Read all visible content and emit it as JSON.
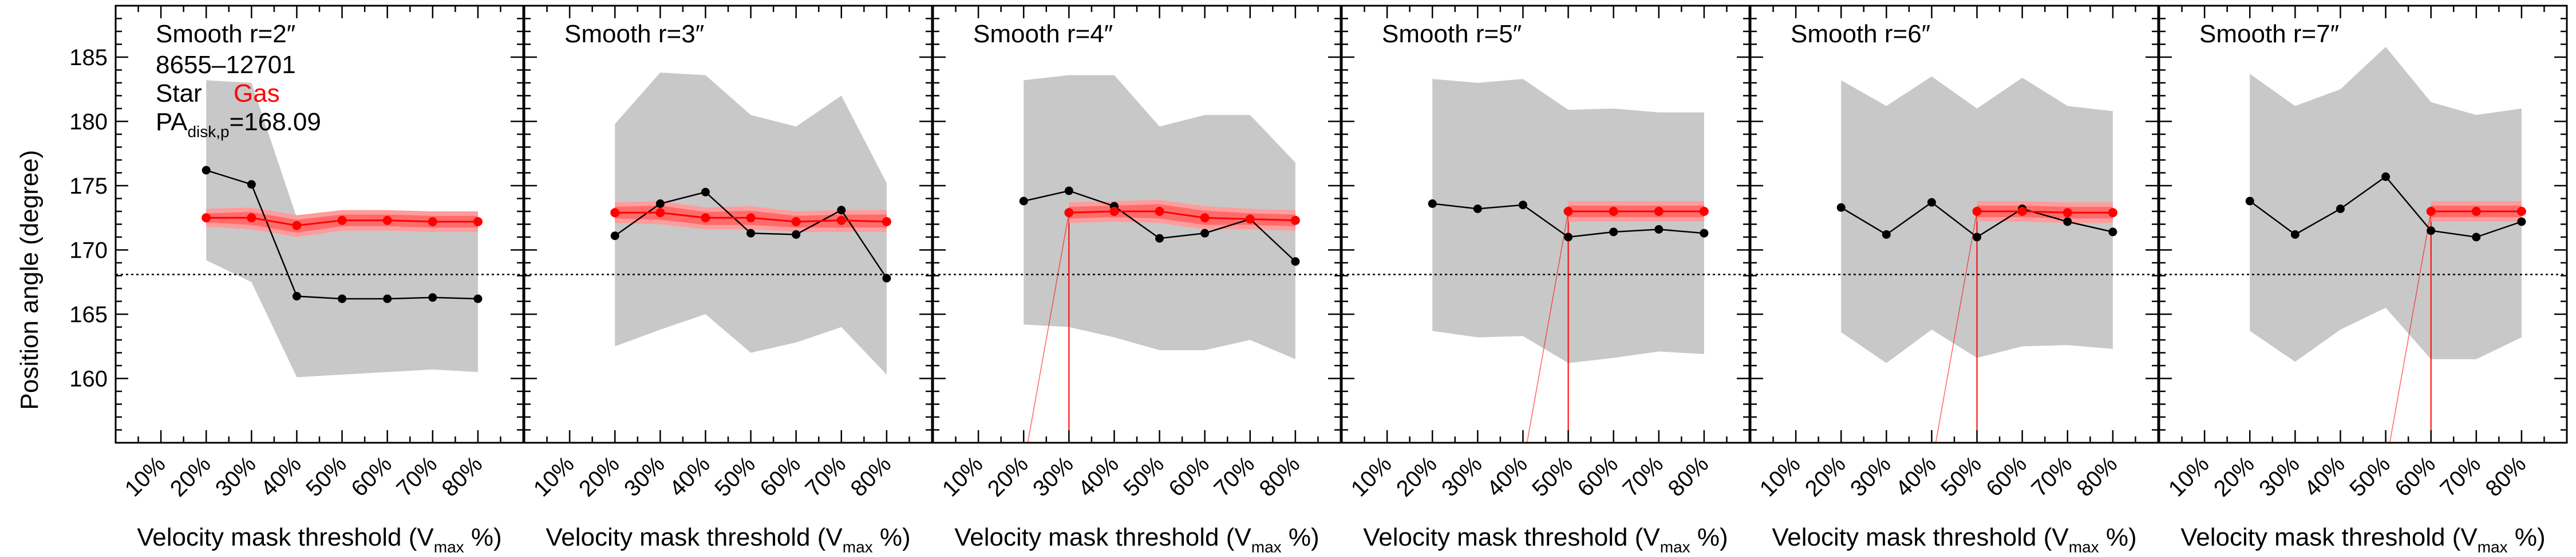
{
  "figure": {
    "ylabel": "Position angle (degree)",
    "xlabel_main": "Velocity mask threshold (V",
    "xlabel_sub": "max",
    "xlabel_end": " %)",
    "galaxy_id": "8655–12701",
    "legend_star": "Star",
    "legend_gas": "Gas",
    "pa_prefix": "PA",
    "pa_sub": "disk,p",
    "pa_value": "=168.09"
  },
  "colors": {
    "star": "#000000",
    "gas": "#ff0000",
    "gas_band": "#ff9c9c",
    "gas_band_inner": "#ff6b6b",
    "star_band": "#c8c8c8",
    "ref_line": "#000000"
  },
  "chart_data": [
    {
      "type": "line",
      "title": "Smooth r=2″",
      "x_tick_labels": [
        "10%",
        "20%",
        "30%",
        "40%",
        "50%",
        "60%",
        "70%",
        "80%"
      ],
      "x": [
        10,
        20,
        30,
        40,
        50,
        60,
        70,
        80
      ],
      "xlim": [
        0,
        90
      ],
      "ylim": [
        155,
        189
      ],
      "y_ticks": [
        160,
        165,
        170,
        175,
        180,
        185
      ],
      "reference_pa": 168.09,
      "star_x": [
        20,
        30,
        40,
        50,
        60,
        70,
        80
      ],
      "star_pa": [
        176.2,
        175.1,
        166.4,
        166.2,
        166.2,
        166.3,
        166.2
      ],
      "star_band_lower": [
        169.2,
        167.5,
        160.1,
        160.3,
        160.5,
        160.7,
        160.5
      ],
      "star_band_upper": [
        183.2,
        183.0,
        172.5,
        172.2,
        172.0,
        172.0,
        172.0
      ],
      "gas_x": [
        20,
        30,
        40,
        50,
        60,
        70,
        80
      ],
      "gas_pa": [
        172.5,
        172.5,
        171.9,
        172.3,
        172.3,
        172.2,
        172.2
      ],
      "gas_band_lower": [
        171.8,
        171.6,
        171.0,
        171.5,
        171.5,
        171.4,
        171.4
      ],
      "gas_band_upper": [
        173.2,
        173.3,
        172.7,
        173.1,
        173.1,
        173.0,
        173.0
      ],
      "gas_start_drop": null
    },
    {
      "type": "line",
      "title": "Smooth r=3″",
      "x_tick_labels": [
        "10%",
        "20%",
        "30%",
        "40%",
        "50%",
        "60%",
        "70%",
        "80%"
      ],
      "x": [
        10,
        20,
        30,
        40,
        50,
        60,
        70,
        80
      ],
      "xlim": [
        0,
        90
      ],
      "ylim": [
        155,
        189
      ],
      "y_ticks": [
        160,
        165,
        170,
        175,
        180,
        185
      ],
      "reference_pa": 168.09,
      "star_x": [
        20,
        30,
        40,
        50,
        60,
        70,
        80
      ],
      "star_pa": [
        171.1,
        173.6,
        174.5,
        171.3,
        171.2,
        173.1,
        167.8
      ],
      "star_band_lower": [
        162.5,
        163.8,
        165.0,
        162.0,
        162.8,
        164.0,
        160.3
      ],
      "star_band_upper": [
        179.8,
        183.8,
        183.6,
        180.5,
        179.6,
        182.0,
        175.2
      ],
      "gas_x": [
        20,
        30,
        40,
        50,
        60,
        70,
        80
      ],
      "gas_pa": [
        172.9,
        172.9,
        172.5,
        172.5,
        172.2,
        172.3,
        172.2
      ],
      "gas_band_lower": [
        172.1,
        172.0,
        171.6,
        171.6,
        171.4,
        171.4,
        171.4
      ],
      "gas_band_upper": [
        173.7,
        173.8,
        173.3,
        173.4,
        173.0,
        173.1,
        173.1
      ],
      "gas_start_drop": null
    },
    {
      "type": "line",
      "title": "Smooth r=4″",
      "x_tick_labels": [
        "10%",
        "20%",
        "30%",
        "40%",
        "50%",
        "60%",
        "70%",
        "80%"
      ],
      "x": [
        10,
        20,
        30,
        40,
        50,
        60,
        70,
        80
      ],
      "xlim": [
        0,
        90
      ],
      "ylim": [
        155,
        189
      ],
      "y_ticks": [
        160,
        165,
        170,
        175,
        180,
        185
      ],
      "reference_pa": 168.09,
      "star_x": [
        20,
        30,
        40,
        50,
        60,
        70,
        80
      ],
      "star_pa": [
        173.8,
        174.6,
        173.4,
        170.9,
        171.3,
        172.4,
        169.1
      ],
      "star_band_lower": [
        164.2,
        164.0,
        163.2,
        162.2,
        162.2,
        163.0,
        161.5
      ],
      "star_band_upper": [
        183.2,
        183.6,
        183.6,
        179.6,
        180.5,
        180.5,
        176.8
      ],
      "gas_x": [
        30,
        40,
        50,
        60,
        70,
        80
      ],
      "gas_pa": [
        172.9,
        173.0,
        173.0,
        172.5,
        172.4,
        172.3
      ],
      "gas_band_lower": [
        172.1,
        172.2,
        172.1,
        171.6,
        171.6,
        171.5
      ],
      "gas_band_upper": [
        173.7,
        173.8,
        173.9,
        173.4,
        173.2,
        173.1
      ],
      "gas_start_drop": {
        "x_from": 20,
        "x_to": 30
      }
    },
    {
      "type": "line",
      "title": "Smooth r=5″",
      "x_tick_labels": [
        "10%",
        "20%",
        "30%",
        "40%",
        "50%",
        "60%",
        "70%",
        "80%"
      ],
      "x": [
        10,
        20,
        30,
        40,
        50,
        60,
        70,
        80
      ],
      "xlim": [
        0,
        90
      ],
      "ylim": [
        155,
        189
      ],
      "y_ticks": [
        160,
        165,
        170,
        175,
        180,
        185
      ],
      "reference_pa": 168.09,
      "star_x": [
        20,
        30,
        40,
        50,
        60,
        70,
        80
      ],
      "star_pa": [
        173.6,
        173.2,
        173.5,
        171.0,
        171.4,
        171.6,
        171.3
      ],
      "star_band_lower": [
        163.7,
        163.2,
        163.3,
        161.2,
        161.6,
        162.1,
        161.9
      ],
      "star_band_upper": [
        183.3,
        183.0,
        183.3,
        180.9,
        181.0,
        180.7,
        180.7
      ],
      "gas_x": [
        50,
        60,
        70,
        80
      ],
      "gas_pa": [
        173.0,
        173.0,
        173.0,
        173.0
      ],
      "gas_band_lower": [
        172.2,
        172.2,
        172.2,
        172.2
      ],
      "gas_band_upper": [
        173.8,
        173.8,
        173.8,
        173.8
      ],
      "gas_start_drop": {
        "x_from": 40,
        "x_to": 50
      }
    },
    {
      "type": "line",
      "title": "Smooth r=6″",
      "x_tick_labels": [
        "10%",
        "20%",
        "30%",
        "40%",
        "50%",
        "60%",
        "70%",
        "80%"
      ],
      "x": [
        10,
        20,
        30,
        40,
        50,
        60,
        70,
        80
      ],
      "xlim": [
        0,
        90
      ],
      "ylim": [
        155,
        189
      ],
      "y_ticks": [
        160,
        165,
        170,
        175,
        180,
        185
      ],
      "reference_pa": 168.09,
      "star_x": [
        20,
        30,
        40,
        50,
        60,
        70,
        80
      ],
      "star_pa": [
        173.3,
        171.2,
        173.7,
        171.0,
        173.2,
        172.2,
        171.4
      ],
      "star_band_lower": [
        163.6,
        161.2,
        163.8,
        161.6,
        162.5,
        162.6,
        162.3
      ],
      "star_band_upper": [
        183.2,
        181.2,
        183.5,
        181.0,
        183.4,
        181.2,
        180.8
      ],
      "gas_x": [
        50,
        60,
        70,
        80
      ],
      "gas_pa": [
        173.0,
        173.0,
        172.9,
        172.9
      ],
      "gas_band_lower": [
        172.2,
        172.2,
        172.1,
        172.1
      ],
      "gas_band_upper": [
        173.8,
        173.8,
        173.7,
        173.7
      ],
      "gas_start_drop": {
        "x_from": 40,
        "x_to": 50
      }
    },
    {
      "type": "line",
      "title": "Smooth r=7″",
      "x_tick_labels": [
        "10%",
        "20%",
        "30%",
        "40%",
        "50%",
        "60%",
        "70%",
        "80%"
      ],
      "x": [
        10,
        20,
        30,
        40,
        50,
        60,
        70,
        80
      ],
      "xlim": [
        0,
        90
      ],
      "ylim": [
        155,
        189
      ],
      "y_ticks": [
        160,
        165,
        170,
        175,
        180,
        185
      ],
      "reference_pa": 168.09,
      "star_x": [
        20,
        30,
        40,
        50,
        60,
        70,
        80
      ],
      "star_pa": [
        173.8,
        171.2,
        173.2,
        175.7,
        171.5,
        171.0,
        172.2
      ],
      "star_band_lower": [
        163.7,
        161.3,
        163.8,
        165.5,
        161.5,
        161.5,
        163.2
      ],
      "star_band_upper": [
        183.7,
        181.2,
        182.5,
        185.8,
        181.5,
        180.5,
        181.0
      ],
      "gas_x": [
        60,
        70,
        80
      ],
      "gas_pa": [
        173.0,
        173.0,
        173.0
      ],
      "gas_band_lower": [
        172.2,
        172.2,
        172.2
      ],
      "gas_band_upper": [
        173.8,
        173.8,
        173.8
      ],
      "gas_start_drop": {
        "x_from": 50,
        "x_to": 60
      }
    }
  ]
}
